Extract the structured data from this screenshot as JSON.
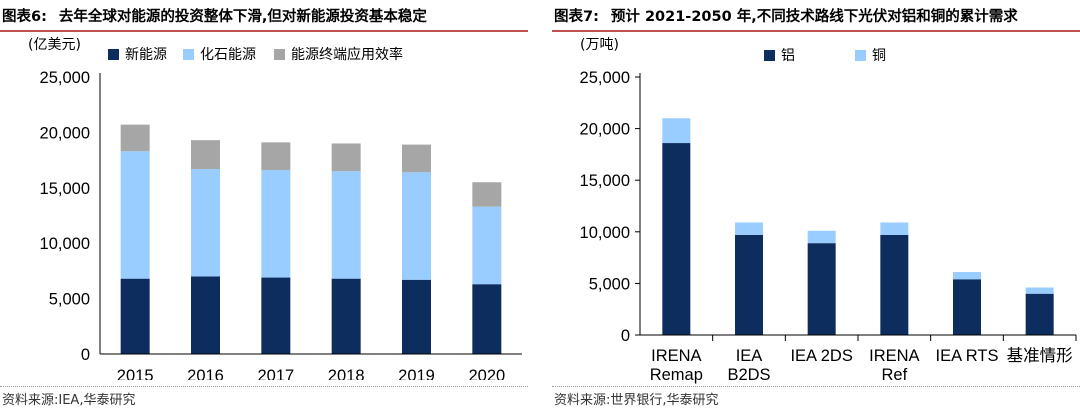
{
  "colors": {
    "accent_rule": "#c0504d",
    "navy": "#0d2d5e",
    "lightblue": "#99ccff",
    "gray": "#a6a6a6"
  },
  "left": {
    "title_num": "图表6:",
    "title": "去年全球对能源的投资整体下滑,但对新能源投资基本稳定",
    "unit": "(亿美元)",
    "source": "资料来源:IEA,华泰研究"
  },
  "right": {
    "title_num": "图表7:",
    "title": "预计 2021-2050 年,不同技术路线下光伏对铝和铜的累计需求",
    "unit": "(万吨)",
    "source": "资料来源:世界银行,华泰研究"
  },
  "chart_data": [
    {
      "type": "bar",
      "stacked": true,
      "categories": [
        "2015",
        "2016",
        "2017",
        "2018",
        "2019",
        "2020"
      ],
      "series": [
        {
          "name": "新能源",
          "color": "#0d2d5e",
          "values": [
            6800,
            7000,
            6900,
            6800,
            6700,
            6300
          ]
        },
        {
          "name": "化石能源",
          "color": "#99ccff",
          "values": [
            11500,
            9700,
            9700,
            9700,
            9700,
            7000
          ]
        },
        {
          "name": "能源终端应用效率",
          "color": "#a6a6a6",
          "values": [
            2400,
            2600,
            2500,
            2500,
            2500,
            2200
          ]
        }
      ],
      "yticks": [
        "0",
        "5,000",
        "10,000",
        "15,000",
        "20,000",
        "25,000"
      ],
      "ylim": [
        0,
        25000
      ],
      "legend": "top-left"
    },
    {
      "type": "bar",
      "stacked": true,
      "categories": [
        [
          "IRENA",
          "Remap"
        ],
        [
          "IEA",
          "B2DS"
        ],
        [
          "IEA 2DS"
        ],
        [
          "IRENA",
          "Ref"
        ],
        [
          "IEA RTS"
        ],
        [
          "基准情形"
        ]
      ],
      "series": [
        {
          "name": "铝",
          "color": "#0d2d5e",
          "values": [
            18600,
            9700,
            8900,
            9700,
            5400,
            4000
          ]
        },
        {
          "name": "铜",
          "color": "#99ccff",
          "values": [
            2400,
            1200,
            1200,
            1200,
            700,
            600
          ]
        }
      ],
      "yticks": [
        "0",
        "5,000",
        "10,000",
        "15,000",
        "20,000",
        "25,000"
      ],
      "ylim": [
        0,
        25000
      ],
      "legend": "top-left"
    }
  ]
}
